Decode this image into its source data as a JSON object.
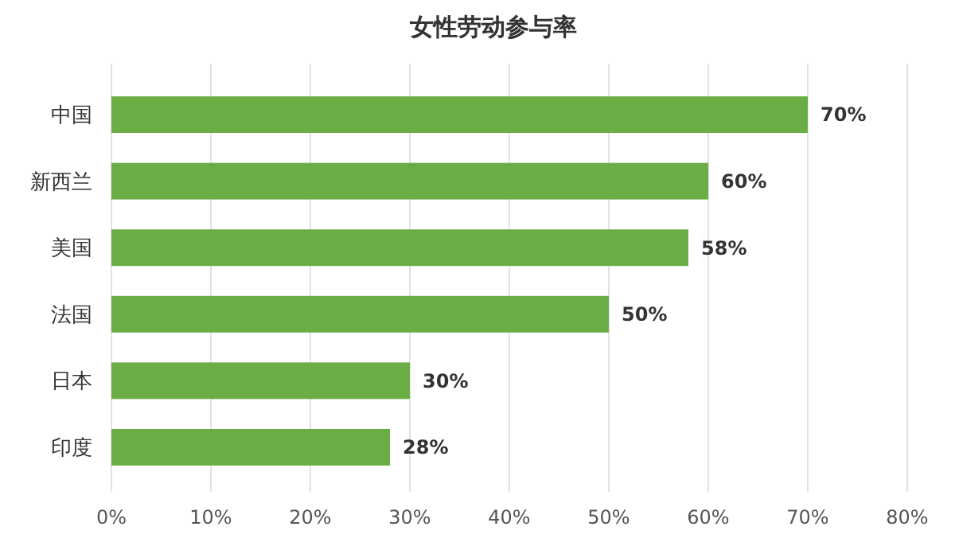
{
  "chart_data": {
    "type": "bar",
    "orientation": "horizontal",
    "title": "女性劳动参与率",
    "categories": [
      "中国",
      "新西兰",
      "美国",
      "法国",
      "日本",
      "印度"
    ],
    "values": [
      70,
      60,
      58,
      50,
      30,
      28
    ],
    "value_labels": [
      "70%",
      "60%",
      "58%",
      "50%",
      "30%",
      "28%"
    ],
    "color": "#6aad45",
    "xlim": [
      0,
      80
    ],
    "xticks": [
      {
        "value": 0,
        "label": "0%"
      },
      {
        "value": 10,
        "label": "10%"
      },
      {
        "value": 20,
        "label": "20%"
      },
      {
        "value": 30,
        "label": "30%"
      },
      {
        "value": 40,
        "label": "40%"
      },
      {
        "value": 50,
        "label": "50%"
      },
      {
        "value": 60,
        "label": "60%"
      },
      {
        "value": 70,
        "label": "70%"
      },
      {
        "value": 80,
        "label": "80%"
      }
    ],
    "grid": "x"
  }
}
